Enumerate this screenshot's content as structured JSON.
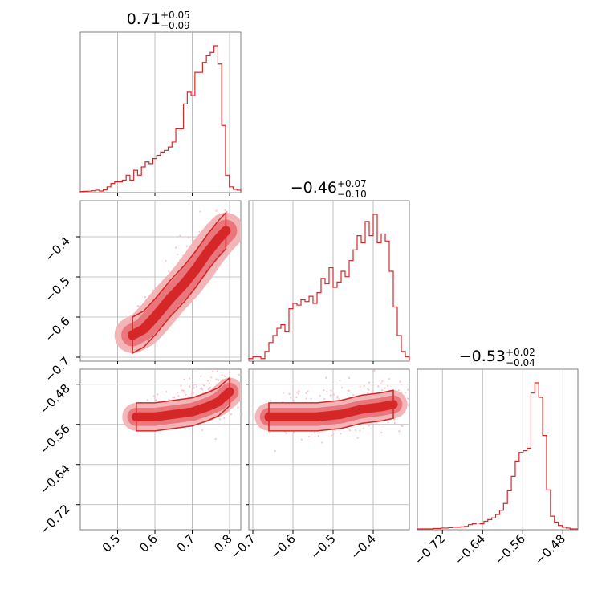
{
  "colors": {
    "series": "#d62728",
    "fill_outer": "#f3b6b8",
    "fill_inner": "#e8767a",
    "fill_core": "#d62728",
    "grid": "#b0b0b0",
    "frame": "#808080",
    "scatter": "#f7c6cc"
  },
  "chart_data": {
    "type": "corner",
    "series_color": "#d62728",
    "grid": true,
    "params": [
      {
        "id": "p1",
        "range": [
          0.4,
          0.83
        ],
        "ticks": [
          0.5,
          0.6,
          0.7,
          0.8
        ],
        "tick_labels": [
          "0.5",
          "0.6",
          "0.7",
          "0.8"
        ],
        "title_main": "0.71",
        "title_plus": "+0.05",
        "title_minus": "−0.09",
        "hist": [
          0.2,
          0.3,
          0.4,
          0.6,
          1.0,
          0.5,
          1.2,
          3,
          5,
          6,
          6,
          7,
          10,
          7,
          13,
          10,
          15,
          18,
          17,
          20,
          22,
          24,
          25,
          27,
          30,
          38,
          38,
          53,
          60,
          58,
          72,
          72,
          78,
          82,
          84,
          88,
          77,
          40,
          10,
          3,
          1.5,
          1
        ]
      },
      {
        "id": "p2",
        "range": [
          -0.71,
          -0.31
        ],
        "ticks": [
          -0.7,
          -0.6,
          -0.5,
          -0.4
        ],
        "tick_labels": [
          "−0.7",
          "−0.6",
          "−0.5",
          "−0.4"
        ],
        "title_main": "−0.46",
        "title_plus": "+0.07",
        "title_minus": "−0.10",
        "hist": [
          1,
          2,
          2,
          1,
          5,
          10,
          14,
          18,
          20,
          16,
          29,
          32,
          31,
          34,
          33,
          36,
          32,
          38,
          46,
          43,
          52,
          41,
          44,
          50,
          47,
          56,
          62,
          70,
          66,
          78,
          70,
          82,
          66,
          71,
          67,
          50,
          30,
          14,
          5,
          2
        ]
      },
      {
        "id": "p3",
        "range": [
          -0.77,
          -0.45
        ],
        "ticks": [
          -0.72,
          -0.64,
          -0.56,
          -0.48
        ],
        "tick_labels": [
          "−0.72",
          "−0.64",
          "−0.56",
          "−0.48"
        ],
        "title_main": "−0.53",
        "title_plus": "+0.02",
        "title_minus": "−0.04",
        "hist": [
          0,
          0,
          0,
          0,
          0.5,
          0.5,
          1,
          1,
          1.5,
          2,
          2,
          2.5,
          3,
          5,
          6,
          7,
          6,
          9,
          11,
          13,
          17,
          22,
          30,
          45,
          62,
          80,
          90,
          92,
          95,
          160,
          172,
          155,
          110,
          46,
          15,
          8,
          4,
          2,
          1,
          0,
          0
        ]
      }
    ],
    "pairs": [
      {
        "x_param": "p1",
        "y_param": "p2",
        "y_ticks": [
          -0.4,
          -0.5,
          -0.6,
          -0.7
        ],
        "y_tick_labels": [
          "−0.4",
          "−0.5",
          "−0.6",
          "−0.7"
        ],
        "description_points": [
          [
            0.55,
            -0.64
          ],
          [
            0.65,
            -0.52
          ],
          [
            0.73,
            -0.42
          ],
          [
            0.78,
            -0.38
          ]
        ]
      },
      {
        "x_param": "p1",
        "y_param": "p3",
        "y_ticks": [
          -0.48,
          -0.56,
          -0.64,
          -0.72
        ],
        "y_tick_labels": [
          "−0.48",
          "−0.56",
          "−0.64",
          "−0.72"
        ]
      },
      {
        "x_param": "p2",
        "y_param": "p3"
      }
    ]
  }
}
